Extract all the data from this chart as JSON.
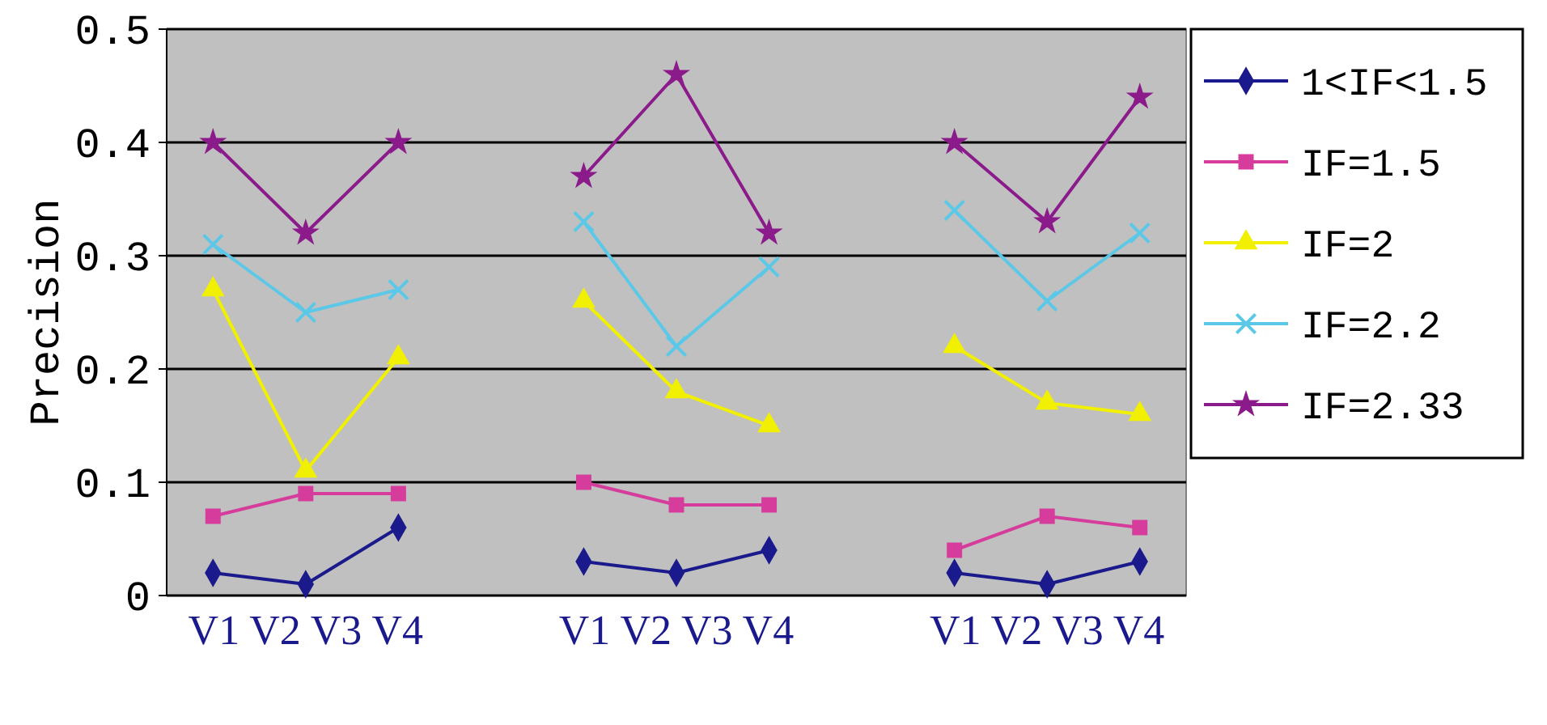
{
  "chart_data": {
    "type": "line",
    "ylabel": "Precision",
    "categories": [
      null,
      null,
      null,
      null,
      null,
      null,
      null,
      null,
      null,
      null,
      null
    ],
    "ylim": [
      0,
      0.5
    ],
    "yticks": [
      0,
      0.1,
      0.2,
      0.3,
      0.4,
      0.5
    ],
    "grid": "y",
    "legend": "right",
    "annotations": [
      "V1 V2 V3 V4",
      "V1 V2 V3 V4",
      "V1 V2 V3 V4"
    ],
    "series": [
      {
        "name": "1<IF<1.5",
        "color": "#1a1a8c",
        "marker": "diamond",
        "values": [
          0.02,
          0.01,
          0.06,
          null,
          0.03,
          0.02,
          0.04,
          null,
          0.02,
          0.01,
          0.03
        ]
      },
      {
        "name": "IF=1.5",
        "color": "#d63c9c",
        "marker": "square",
        "values": [
          0.07,
          0.09,
          0.09,
          null,
          0.1,
          0.08,
          0.08,
          null,
          0.04,
          0.07,
          0.06
        ]
      },
      {
        "name": "IF=2",
        "color": "#f0f000",
        "marker": "triangle",
        "values": [
          0.27,
          0.11,
          0.21,
          null,
          0.26,
          0.18,
          0.15,
          null,
          0.22,
          0.17,
          0.16
        ]
      },
      {
        "name": "IF=2.2",
        "color": "#5bc8e8",
        "marker": "cross",
        "values": [
          0.31,
          0.25,
          0.27,
          null,
          0.33,
          0.22,
          0.29,
          null,
          0.34,
          0.26,
          0.32
        ]
      },
      {
        "name": "IF=2.33",
        "color": "#8b1a8b",
        "marker": "star",
        "values": [
          0.4,
          0.32,
          0.4,
          null,
          0.37,
          0.46,
          0.32,
          null,
          0.4,
          0.33,
          0.44
        ]
      }
    ]
  }
}
